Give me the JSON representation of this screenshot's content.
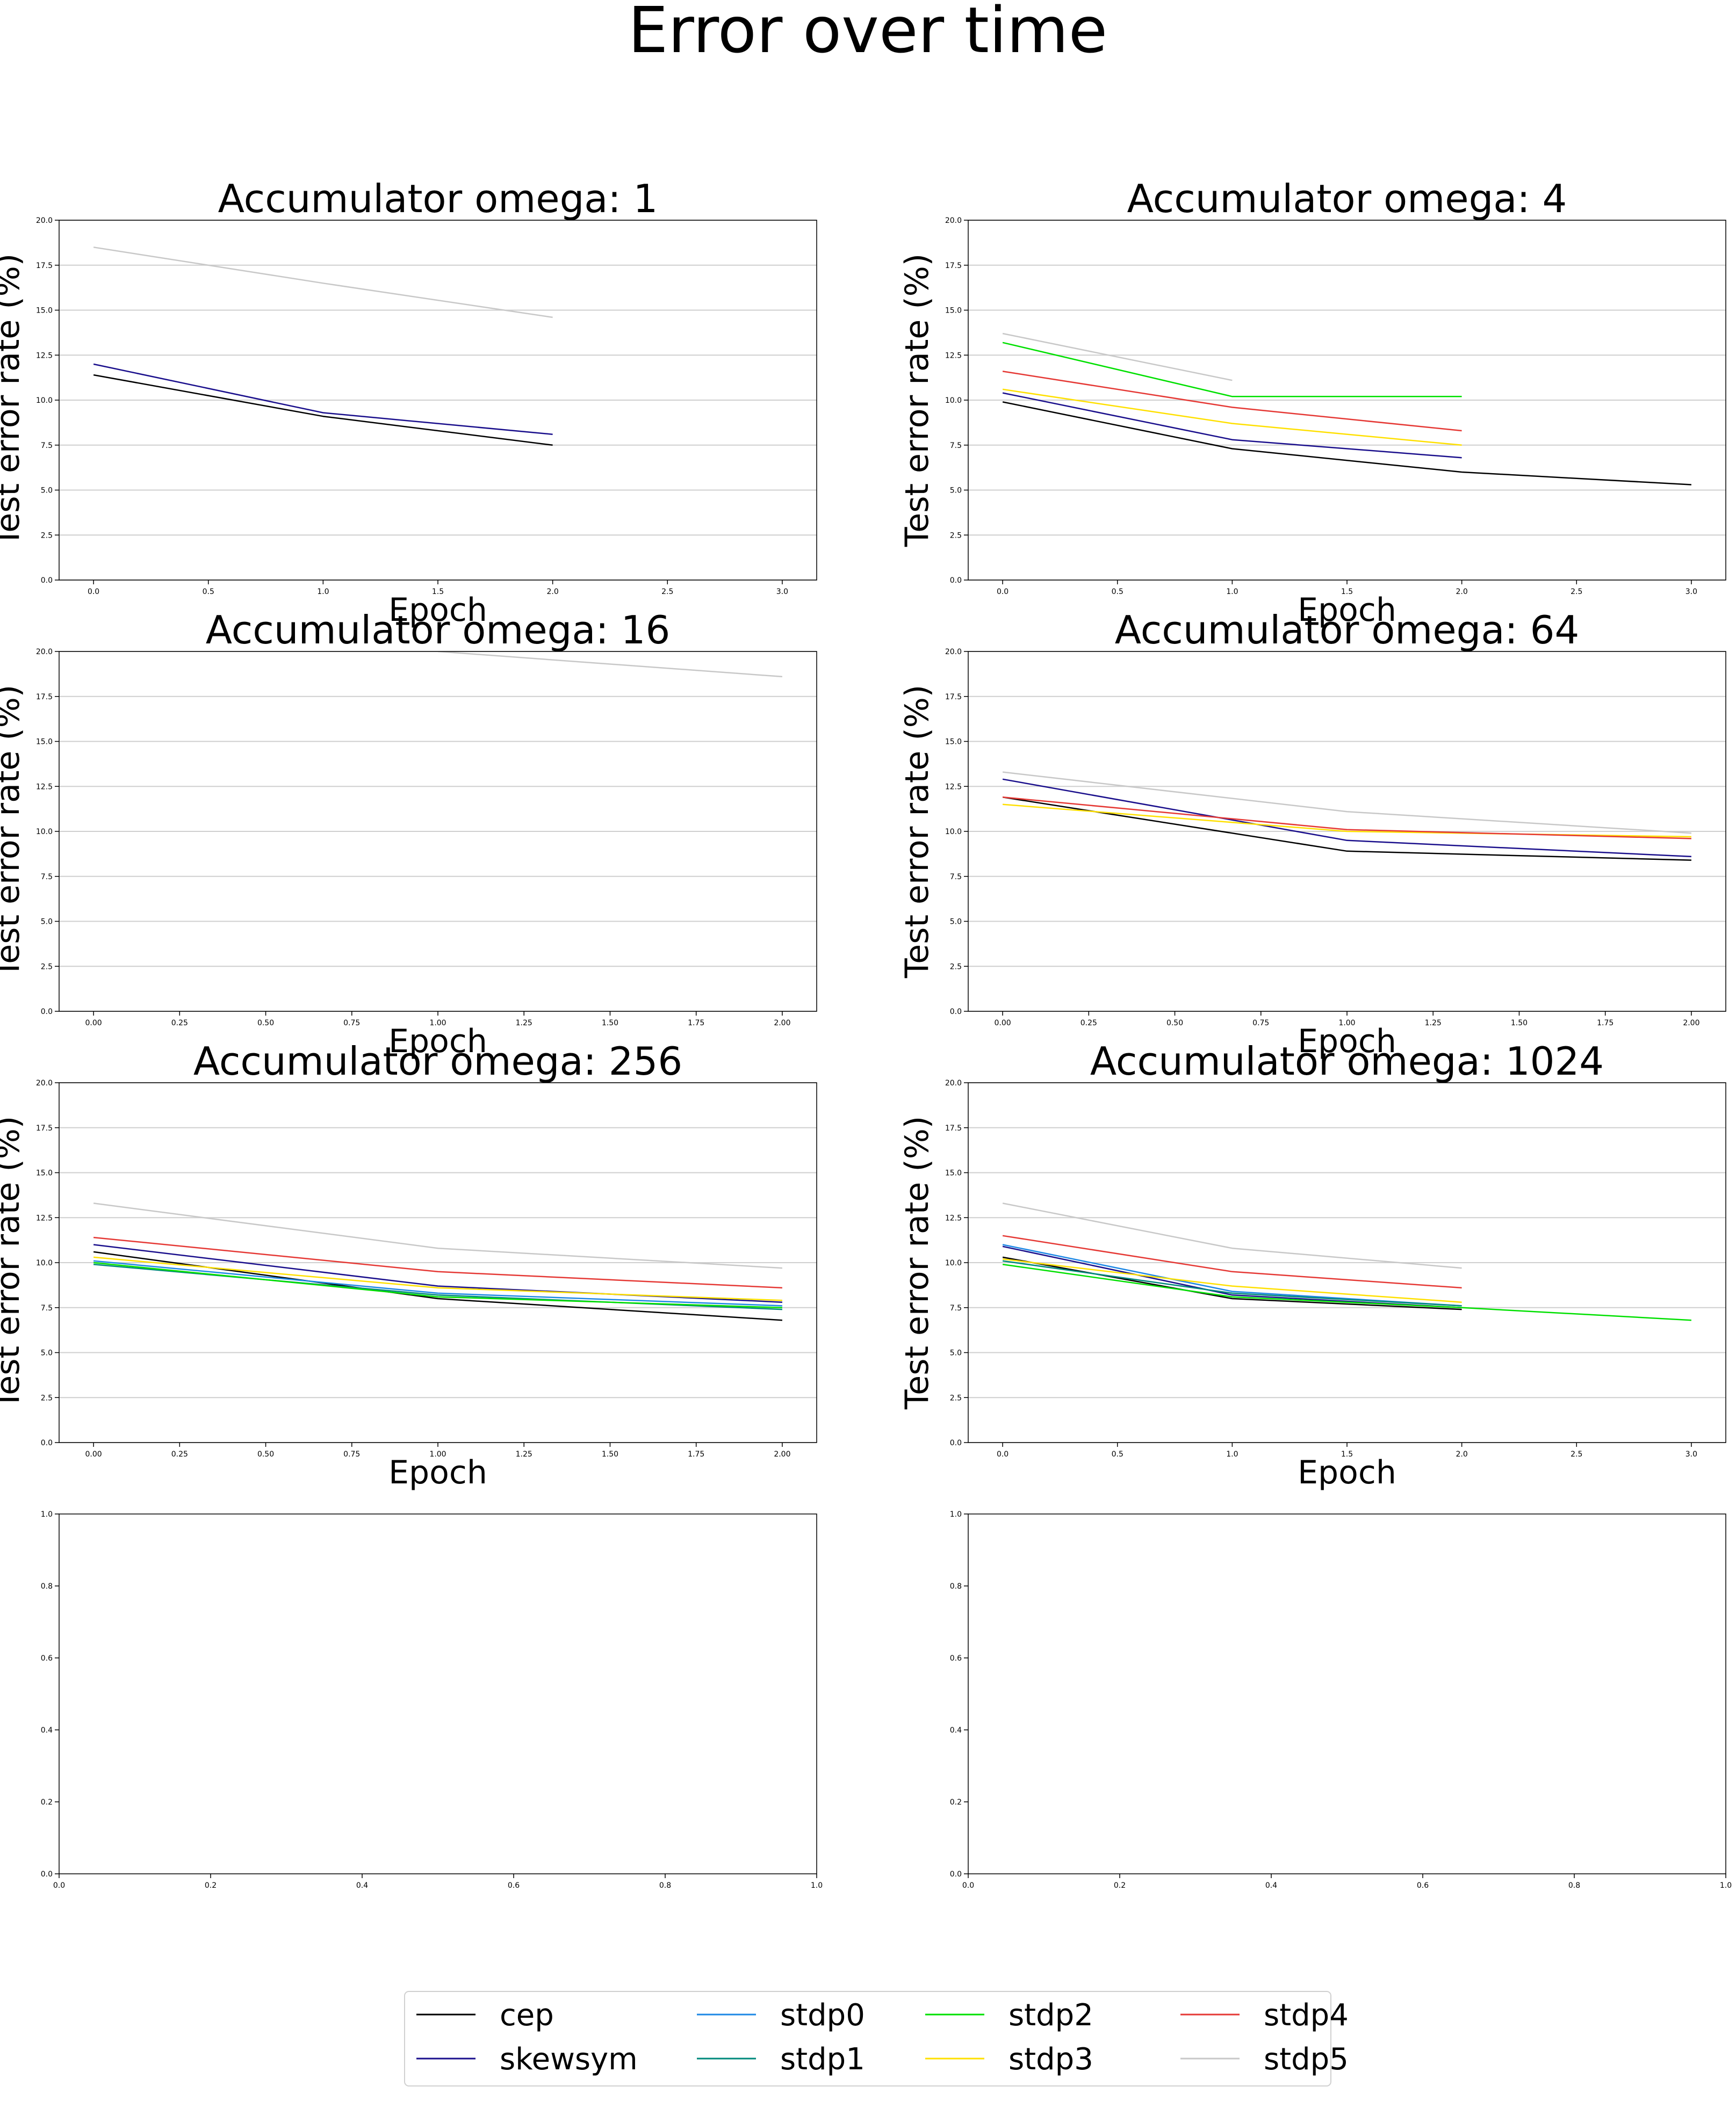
{
  "title": "Error over time",
  "colors": {
    "cep": "#000000",
    "skewsym": "#1a0f8c",
    "stdp0": "#1e88e5",
    "stdp1": "#00897b",
    "stdp2": "#00e000",
    "stdp3": "#ffe000",
    "stdp4": "#e53935",
    "stdp5": "#c8c8c8",
    "grid": "#cfcfcf",
    "axis": "#000000"
  },
  "legend": {
    "placement": "lower-center",
    "entries": [
      "cep",
      "skewsym",
      "stdp0",
      "stdp1",
      "stdp2",
      "stdp3",
      "stdp4",
      "stdp5"
    ]
  },
  "chart_data": [
    {
      "type": "line",
      "title": "Accumulator omega: 1",
      "xlabel": "Epoch",
      "ylabel": "Test error rate (%)",
      "xlim": [
        -0.15,
        3.15
      ],
      "ylim": [
        0,
        20
      ],
      "xticks": [
        "0.0",
        "0.5",
        "1.0",
        "1.5",
        "2.0",
        "2.5",
        "3.0"
      ],
      "yticks": [
        "0.0",
        "2.5",
        "5.0",
        "7.5",
        "10.0",
        "12.5",
        "15.0",
        "17.5",
        "20.0"
      ],
      "grid": "y",
      "series": [
        {
          "name": "cep",
          "x": [
            0,
            1,
            2
          ],
          "y": [
            11.4,
            9.1,
            7.5
          ]
        },
        {
          "name": "skewsym",
          "x": [
            0,
            1,
            2
          ],
          "y": [
            12.0,
            9.3,
            8.1
          ]
        },
        {
          "name": "stdp5",
          "x": [
            0,
            1,
            2
          ],
          "y": [
            18.5,
            16.5,
            14.6
          ]
        }
      ]
    },
    {
      "type": "line",
      "title": "Accumulator omega: 4",
      "xlabel": "Epoch",
      "ylabel": "Test error rate (%)",
      "xlim": [
        -0.15,
        3.15
      ],
      "ylim": [
        0,
        20
      ],
      "xticks": [
        "0.0",
        "0.5",
        "1.0",
        "1.5",
        "2.0",
        "2.5",
        "3.0"
      ],
      "yticks": [
        "0.0",
        "2.5",
        "5.0",
        "7.5",
        "10.0",
        "12.5",
        "15.0",
        "17.5",
        "20.0"
      ],
      "grid": "y",
      "series": [
        {
          "name": "cep",
          "x": [
            0,
            1,
            2,
            3
          ],
          "y": [
            9.9,
            7.3,
            6.0,
            5.3
          ]
        },
        {
          "name": "skewsym",
          "x": [
            0,
            1,
            2
          ],
          "y": [
            10.4,
            7.8,
            6.8
          ]
        },
        {
          "name": "stdp2",
          "x": [
            0,
            1,
            2
          ],
          "y": [
            13.2,
            10.2,
            10.2
          ]
        },
        {
          "name": "stdp3",
          "x": [
            0,
            1,
            2
          ],
          "y": [
            10.6,
            8.7,
            7.5
          ]
        },
        {
          "name": "stdp4",
          "x": [
            0,
            1,
            2
          ],
          "y": [
            11.6,
            9.6,
            8.3
          ]
        },
        {
          "name": "stdp5",
          "x": [
            0,
            1
          ],
          "y": [
            13.7,
            11.1
          ]
        }
      ]
    },
    {
      "type": "line",
      "title": "Accumulator omega: 16",
      "xlabel": "Epoch",
      "ylabel": "Test error rate (%)",
      "xlim": [
        -0.1,
        2.1
      ],
      "ylim": [
        0,
        20
      ],
      "xticks": [
        "0.00",
        "0.25",
        "0.50",
        "0.75",
        "1.00",
        "1.25",
        "1.50",
        "1.75",
        "2.00"
      ],
      "yticks": [
        "0.0",
        "2.5",
        "5.0",
        "7.5",
        "10.0",
        "12.5",
        "15.0",
        "17.5",
        "20.0"
      ],
      "grid": "y",
      "series": [
        {
          "name": "stdp5",
          "x": [
            1,
            2
          ],
          "y": [
            20.0,
            18.6
          ]
        }
      ]
    },
    {
      "type": "line",
      "title": "Accumulator omega: 64",
      "xlabel": "Epoch",
      "ylabel": "Test error rate (%)",
      "xlim": [
        -0.1,
        2.1
      ],
      "ylim": [
        0,
        20
      ],
      "xticks": [
        "0.00",
        "0.25",
        "0.50",
        "0.75",
        "1.00",
        "1.25",
        "1.50",
        "1.75",
        "2.00"
      ],
      "yticks": [
        "0.0",
        "2.5",
        "5.0",
        "7.5",
        "10.0",
        "12.5",
        "15.0",
        "17.5",
        "20.0"
      ],
      "grid": "y",
      "series": [
        {
          "name": "cep",
          "x": [
            0,
            1,
            2
          ],
          "y": [
            11.9,
            8.9,
            8.4
          ]
        },
        {
          "name": "skewsym",
          "x": [
            0,
            1,
            2
          ],
          "y": [
            12.9,
            9.5,
            8.6
          ]
        },
        {
          "name": "stdp3",
          "x": [
            0,
            1,
            2
          ],
          "y": [
            11.5,
            10.0,
            9.7
          ]
        },
        {
          "name": "stdp4",
          "x": [
            0,
            1,
            2
          ],
          "y": [
            11.9,
            10.1,
            9.6
          ]
        },
        {
          "name": "stdp5",
          "x": [
            0,
            1,
            2
          ],
          "y": [
            13.3,
            11.1,
            9.9
          ]
        }
      ]
    },
    {
      "type": "line",
      "title": "Accumulator omega: 256",
      "xlabel": "Epoch",
      "ylabel": "Test error rate (%)",
      "xlim": [
        -0.1,
        2.1
      ],
      "ylim": [
        0,
        20
      ],
      "xticks": [
        "0.00",
        "0.25",
        "0.50",
        "0.75",
        "1.00",
        "1.25",
        "1.50",
        "1.75",
        "2.00"
      ],
      "yticks": [
        "0.0",
        "2.5",
        "5.0",
        "7.5",
        "10.0",
        "12.5",
        "15.0",
        "17.5",
        "20.0"
      ],
      "grid": "y",
      "series": [
        {
          "name": "cep",
          "x": [
            0,
            1,
            2
          ],
          "y": [
            10.6,
            8.0,
            6.8
          ]
        },
        {
          "name": "skewsym",
          "x": [
            0,
            1,
            2
          ],
          "y": [
            11.0,
            8.7,
            7.8
          ]
        },
        {
          "name": "stdp0",
          "x": [
            0,
            1,
            2
          ],
          "y": [
            10.1,
            8.3,
            7.6
          ]
        },
        {
          "name": "stdp1",
          "x": [
            0,
            1,
            2
          ],
          "y": [
            9.9,
            8.2,
            7.4
          ]
        },
        {
          "name": "stdp2",
          "x": [
            0,
            1,
            2
          ],
          "y": [
            10.0,
            8.1,
            7.5
          ]
        },
        {
          "name": "stdp3",
          "x": [
            0,
            1,
            2
          ],
          "y": [
            10.3,
            8.6,
            7.9
          ]
        },
        {
          "name": "stdp4",
          "x": [
            0,
            1,
            2
          ],
          "y": [
            11.4,
            9.5,
            8.6
          ]
        },
        {
          "name": "stdp5",
          "x": [
            0,
            1,
            2
          ],
          "y": [
            13.3,
            10.8,
            9.7
          ]
        }
      ]
    },
    {
      "type": "line",
      "title": "Accumulator omega: 1024",
      "xlabel": "Epoch",
      "ylabel": "Test error rate (%)",
      "xlim": [
        -0.15,
        3.15
      ],
      "ylim": [
        0,
        20
      ],
      "xticks": [
        "0.0",
        "0.5",
        "1.0",
        "1.5",
        "2.0",
        "2.5",
        "3.0"
      ],
      "yticks": [
        "0.0",
        "2.5",
        "5.0",
        "7.5",
        "10.0",
        "12.5",
        "15.0",
        "17.5",
        "20.0"
      ],
      "grid": "y",
      "series": [
        {
          "name": "cep",
          "x": [
            0,
            1,
            2
          ],
          "y": [
            10.3,
            8.0,
            7.4
          ]
        },
        {
          "name": "skewsym",
          "x": [
            0,
            1,
            2
          ],
          "y": [
            10.9,
            8.2,
            7.5
          ]
        },
        {
          "name": "stdp0",
          "x": [
            0,
            1,
            2
          ],
          "y": [
            11.0,
            8.4,
            7.6
          ]
        },
        {
          "name": "stdp1",
          "x": [
            0,
            1,
            2
          ],
          "y": [
            10.1,
            8.3,
            7.6
          ]
        },
        {
          "name": "stdp2",
          "x": [
            0,
            1,
            2,
            3
          ],
          "y": [
            9.9,
            8.1,
            7.5,
            6.8
          ]
        },
        {
          "name": "stdp3",
          "x": [
            0,
            1,
            2
          ],
          "y": [
            10.2,
            8.7,
            7.8
          ]
        },
        {
          "name": "stdp4",
          "x": [
            0,
            1,
            2
          ],
          "y": [
            11.5,
            9.5,
            8.6
          ]
        },
        {
          "name": "stdp5",
          "x": [
            0,
            1,
            2
          ],
          "y": [
            13.3,
            10.8,
            9.7
          ]
        }
      ]
    },
    {
      "type": "line",
      "title": "",
      "xlabel": "",
      "ylabel": "",
      "xlim": [
        0,
        1
      ],
      "ylim": [
        0,
        1
      ],
      "xticks": [
        "0.0",
        "0.2",
        "0.4",
        "0.6",
        "0.8",
        "1.0"
      ],
      "yticks": [
        "0.0",
        "0.2",
        "0.4",
        "0.6",
        "0.8",
        "1.0"
      ],
      "grid": "none",
      "series": []
    },
    {
      "type": "line",
      "title": "",
      "xlabel": "",
      "ylabel": "",
      "xlim": [
        0,
        1
      ],
      "ylim": [
        0,
        1
      ],
      "xticks": [
        "0.0",
        "0.2",
        "0.4",
        "0.6",
        "0.8",
        "1.0"
      ],
      "yticks": [
        "0.0",
        "0.2",
        "0.4",
        "0.6",
        "0.8",
        "1.0"
      ],
      "grid": "none",
      "series": []
    }
  ]
}
